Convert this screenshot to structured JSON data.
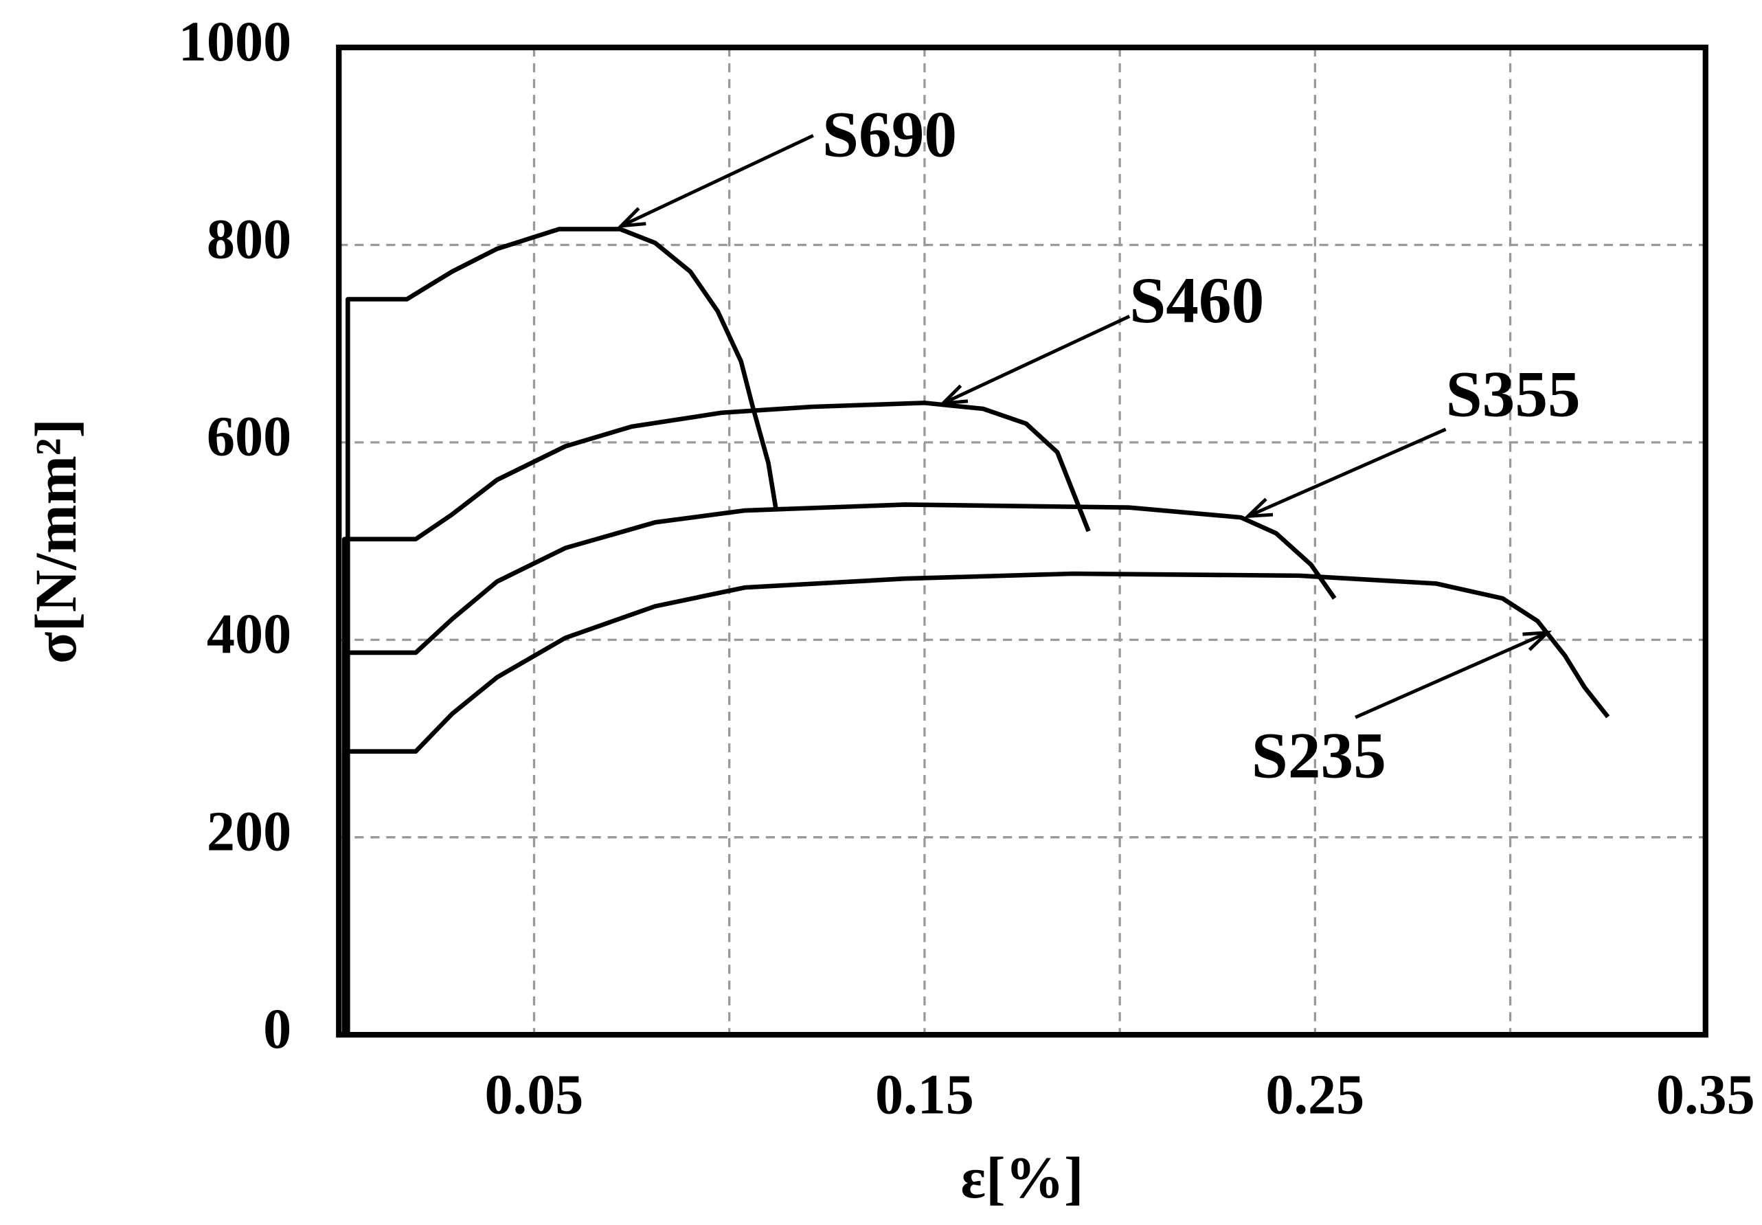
{
  "chart_data": {
    "type": "line",
    "xlabel": "ε[%]",
    "ylabel": "σ[N/mm²]",
    "xlim": [
      0,
      0.35
    ],
    "ylim": [
      0,
      1000
    ],
    "xticks": [
      0.05,
      0.15,
      0.25,
      0.35
    ],
    "xgrid": [
      0.1,
      0.2,
      0.3
    ],
    "yticks": [
      0,
      200,
      400,
      600,
      800,
      1000
    ],
    "grid": true,
    "series": [
      {
        "name": "S690",
        "color": "#000000",
        "x": [
          0.0023,
          0.0023,
          0.0174,
          0.029,
          0.0405,
          0.0564,
          0.072,
          0.081,
          0.09,
          0.097,
          0.103,
          0.106,
          0.11,
          0.112
        ],
        "values": [
          0,
          745,
          745,
          773,
          796,
          816,
          816,
          802,
          773,
          733,
          682,
          636,
          579,
          531
        ]
      },
      {
        "name": "S460",
        "color": "#000000",
        "x": [
          0.0014,
          0.0014,
          0.0197,
          0.029,
          0.0405,
          0.058,
          0.075,
          0.098,
          0.121,
          0.15,
          0.165,
          0.176,
          0.184,
          0.188,
          0.192
        ],
        "values": [
          0,
          502,
          502,
          527,
          562,
          596,
          616,
          630,
          636,
          640,
          634,
          619,
          590,
          550,
          510
        ]
      },
      {
        "name": "S355",
        "color": "#000000",
        "x": [
          0.0014,
          0.0014,
          0.0197,
          0.029,
          0.0405,
          0.058,
          0.081,
          0.104,
          0.145,
          0.2025,
          0.231,
          0.24,
          0.249,
          0.255
        ],
        "values": [
          0,
          387,
          387,
          421,
          459,
          493,
          519,
          531,
          537,
          534,
          524,
          508,
          476,
          442
        ]
      },
      {
        "name": "S235",
        "color": "#000000",
        "x": [
          0.0014,
          0.0014,
          0.0197,
          0.029,
          0.0405,
          0.058,
          0.081,
          0.104,
          0.145,
          0.188,
          0.246,
          0.281,
          0.298,
          0.307,
          0.314,
          0.319,
          0.325
        ],
        "values": [
          0,
          287,
          287,
          325,
          362,
          402,
          434,
          453,
          462,
          467,
          465,
          457,
          442,
          419,
          384,
          352,
          322
        ]
      }
    ]
  }
}
